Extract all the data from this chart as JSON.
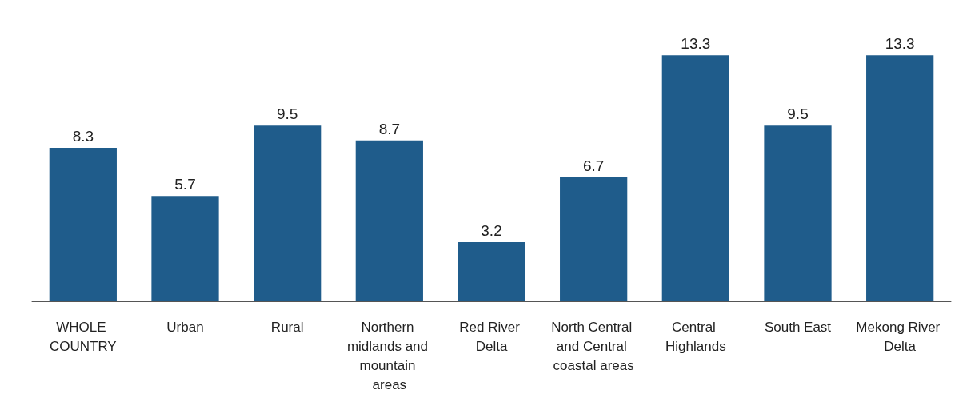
{
  "chart_data": {
    "type": "bar",
    "categories": [
      "WHOLE COUNTRY",
      "Urban",
      "Rural",
      "Northern midlands and mountain areas",
      "Red River Delta",
      "North Central and Central coastal areas",
      "Central Highlands",
      "South East",
      "Mekong River Delta"
    ],
    "values": [
      8.3,
      5.7,
      9.5,
      8.7,
      3.2,
      6.7,
      13.3,
      9.5,
      13.3
    ],
    "color": "#1f5c8b",
    "data_labels": true
  }
}
